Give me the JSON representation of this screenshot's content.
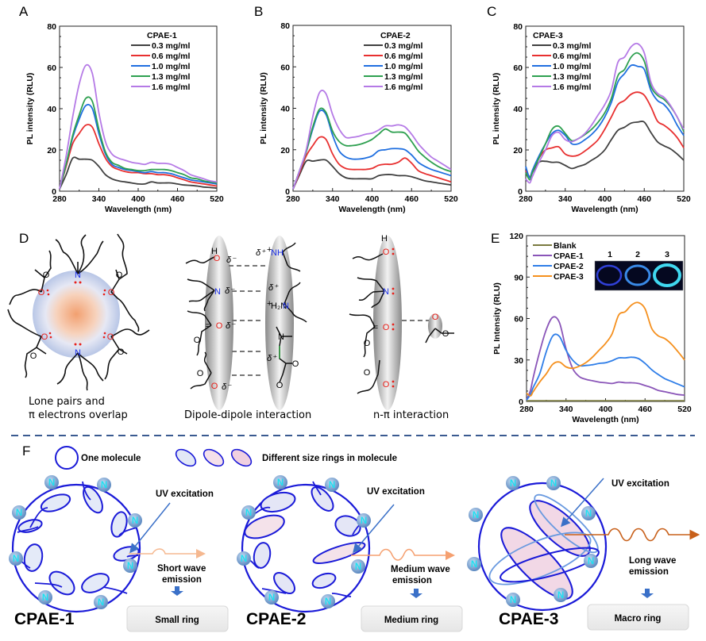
{
  "figure": {
    "panels": {
      "A": "A",
      "B": "B",
      "C": "C",
      "D": "D",
      "E": "E",
      "F": "F"
    }
  },
  "chart_data": [
    {
      "id": "A",
      "type": "line",
      "title": "",
      "xlabel": "Wavelength (nm)",
      "ylabel": "PL intensity (RLU)",
      "xlim": [
        280,
        520
      ],
      "ylim": [
        0,
        80
      ],
      "xticks": [
        280,
        340,
        400,
        460,
        520
      ],
      "yticks": [
        0,
        20,
        40,
        60,
        80
      ],
      "legend_title": "CPAE-1",
      "legend_position": "top-right",
      "grid": false,
      "x": [
        280,
        290,
        300,
        310,
        320,
        330,
        340,
        350,
        360,
        370,
        380,
        390,
        400,
        410,
        420,
        430,
        440,
        450,
        460,
        470,
        480,
        490,
        500,
        510,
        520
      ],
      "series": [
        {
          "name": "0.3 mg/ml",
          "color": "#404040",
          "values": [
            1,
            8,
            16,
            15.5,
            15.5,
            15,
            12,
            8,
            6,
            5,
            4.5,
            4,
            3.5,
            3.5,
            4.5,
            4,
            4,
            4,
            3.5,
            3,
            2.8,
            2.5,
            2,
            1.8,
            1.5
          ]
        },
        {
          "name": "0.6 mg/ml",
          "color": "#e83030",
          "values": [
            1,
            12,
            23,
            28,
            32,
            31,
            23,
            16,
            12,
            10.5,
            9.5,
            9,
            9,
            8.5,
            8.5,
            8,
            8,
            7.5,
            6.5,
            5.5,
            4.5,
            4,
            3.5,
            3,
            2.5
          ]
        },
        {
          "name": "1.0 mg/ml",
          "color": "#1f6fe0",
          "values": [
            1,
            13,
            26,
            35,
            41.5,
            40,
            28,
            18,
            13,
            11.5,
            10.5,
            10,
            9.5,
            9,
            9.5,
            9,
            9,
            8.5,
            7.5,
            6.5,
            5.5,
            5,
            4.5,
            4,
            3.5
          ]
        },
        {
          "name": "1.3 mg/ml",
          "color": "#2ea050",
          "values": [
            1,
            13,
            27,
            37,
            45,
            43.5,
            30,
            19,
            14,
            12.5,
            11,
            10.5,
            10,
            10,
            10.5,
            10.5,
            10.5,
            10,
            9,
            8,
            6.5,
            6,
            5,
            4.5,
            4
          ]
        },
        {
          "name": "1.6 mg/ml",
          "color": "#b57ae6",
          "values": [
            1,
            17,
            36,
            52,
            61,
            57,
            38,
            24,
            18,
            16,
            15,
            14,
            13.5,
            13,
            14,
            13.5,
            13.5,
            13,
            11.5,
            10,
            8,
            7,
            6,
            5,
            4.5
          ]
        }
      ]
    },
    {
      "id": "B",
      "type": "line",
      "title": "",
      "xlabel": "Wavelength (nm)",
      "ylabel": "PL intensity (RLU)",
      "xlim": [
        280,
        520
      ],
      "ylim": [
        0,
        80
      ],
      "xticks": [
        280,
        340,
        400,
        460,
        520
      ],
      "yticks": [
        0,
        20,
        40,
        60,
        80
      ],
      "legend_title": "CPAE-2",
      "legend_position": "top-right",
      "grid": false,
      "x": [
        280,
        290,
        300,
        310,
        320,
        330,
        340,
        350,
        360,
        370,
        380,
        390,
        400,
        410,
        420,
        430,
        440,
        450,
        460,
        470,
        480,
        490,
        500,
        510,
        520
      ],
      "series": [
        {
          "name": "0.3 mg/ml",
          "color": "#404040",
          "values": [
            1,
            8,
            14.5,
            14.5,
            15,
            15,
            12,
            8.5,
            6.5,
            6,
            6,
            6,
            6,
            7.5,
            8,
            8,
            7.5,
            7.5,
            7,
            6,
            5,
            4.5,
            4,
            3.5,
            3
          ]
        },
        {
          "name": "0.6 mg/ml",
          "color": "#e83030",
          "values": [
            1,
            9,
            17,
            22,
            26,
            25,
            18,
            13,
            11,
            10.5,
            10.5,
            10.5,
            11,
            12.5,
            13,
            13,
            14,
            16,
            13.5,
            10,
            8.5,
            7.5,
            6.5,
            5.5,
            4.5
          ]
        },
        {
          "name": "1.0 mg/ml",
          "color": "#1f6fe0",
          "values": [
            1,
            10,
            19,
            30,
            38.5,
            37,
            27,
            19.5,
            16.5,
            15.5,
            15.5,
            16,
            17,
            19.5,
            20,
            20.5,
            20.5,
            20,
            17.5,
            14,
            12,
            10.5,
            9.5,
            8.5,
            7.5
          ]
        },
        {
          "name": "1.3 mg/ml",
          "color": "#2ea050",
          "values": [
            1,
            10,
            19,
            31,
            39.5,
            38,
            29,
            24,
            22,
            22,
            22.5,
            23.5,
            25,
            27.5,
            30,
            28.5,
            28.5,
            28,
            24,
            19.5,
            16.5,
            14,
            12,
            10.5,
            9.5
          ]
        },
        {
          "name": "1.6 mg/ml",
          "color": "#b57ae6",
          "values": [
            1,
            10,
            20,
            36,
            47.5,
            47,
            37,
            30,
            26,
            26,
            26.5,
            27.5,
            28,
            29.5,
            31.5,
            31.5,
            32,
            31,
            27.5,
            23,
            19.5,
            16.5,
            14.5,
            12.5,
            10.5
          ]
        }
      ]
    },
    {
      "id": "C",
      "type": "line",
      "title": "",
      "xlabel": "Wavelength (nm)",
      "ylabel": "PL intensity (RLU)",
      "xlim": [
        280,
        520
      ],
      "ylim": [
        0,
        80
      ],
      "xticks": [
        280,
        340,
        400,
        460,
        520
      ],
      "yticks": [
        0,
        20,
        40,
        60,
        80
      ],
      "legend_title": "CPAE-3",
      "legend_position": "top-left",
      "grid": false,
      "x": [
        280,
        286,
        290,
        300,
        310,
        320,
        330,
        340,
        350,
        360,
        370,
        380,
        390,
        400,
        410,
        420,
        430,
        440,
        450,
        460,
        470,
        480,
        490,
        500,
        510,
        520
      ],
      "series": [
        {
          "name": "0.3 mg/ml",
          "color": "#404040",
          "values": [
            10,
            7,
            9,
            14,
            14.5,
            14,
            14,
            12.5,
            11,
            12,
            13,
            15,
            17,
            20,
            25,
            29.5,
            31,
            33,
            33.5,
            33.5,
            28.5,
            24,
            22,
            20.5,
            18,
            15
          ]
        },
        {
          "name": "0.6 mg/ml",
          "color": "#e83030",
          "values": [
            10,
            7,
            9.5,
            16,
            20,
            21,
            21.5,
            18,
            17,
            17.5,
            19.5,
            22,
            25,
            30,
            36,
            42,
            44,
            47,
            48,
            46.5,
            41,
            34,
            32,
            29.5,
            26,
            21
          ]
        },
        {
          "name": "1.0 mg/ml",
          "color": "#1f6fe0",
          "values": [
            12,
            6.5,
            10,
            17,
            23,
            28,
            29.5,
            27,
            23,
            23,
            25,
            27.5,
            31,
            36,
            43,
            53,
            57,
            61,
            60.5,
            59,
            49,
            44,
            42,
            38,
            32,
            27
          ]
        },
        {
          "name": "1.3 mg/ml",
          "color": "#2ea050",
          "values": [
            9,
            5.5,
            9,
            16,
            23,
            30,
            31.5,
            28,
            24.5,
            25.5,
            27.5,
            30,
            33.5,
            38,
            45,
            56,
            59,
            65,
            67,
            63,
            51,
            46.5,
            44.5,
            41,
            36,
            29
          ]
        },
        {
          "name": "1.6 mg/ml",
          "color": "#b57ae6",
          "values": [
            6,
            4,
            7,
            14,
            20,
            27,
            28.5,
            25,
            24,
            25.5,
            28,
            32,
            37,
            42,
            49,
            62.5,
            65,
            70,
            71.5,
            67,
            53,
            47.5,
            45.5,
            41.5,
            36,
            30
          ]
        }
      ]
    },
    {
      "id": "E",
      "type": "line",
      "title": "",
      "xlabel": "Wavelength (nm)",
      "ylabel": "PL Intensity (RLU)",
      "xlim": [
        280,
        520
      ],
      "ylim": [
        0,
        120
      ],
      "xticks": [
        280,
        340,
        400,
        460,
        520
      ],
      "yticks": [
        0,
        30,
        60,
        90,
        120
      ],
      "legend_position": "top-left",
      "grid": false,
      "inset": {
        "labels": [
          "1",
          "2",
          "3"
        ],
        "description": "UV-lit vials of CPAE-1, CPAE-2, CPAE-3"
      },
      "x": [
        280,
        286,
        290,
        300,
        310,
        320,
        330,
        340,
        350,
        360,
        370,
        380,
        390,
        400,
        410,
        420,
        430,
        440,
        450,
        460,
        470,
        480,
        490,
        500,
        510,
        520
      ],
      "series": [
        {
          "name": "Blank",
          "color": "#7a7a40",
          "values": [
            0.5,
            0.5,
            0.5,
            0.5,
            0.5,
            0.5,
            0.5,
            0.5,
            0.5,
            0.5,
            0.5,
            0.5,
            0.5,
            0.5,
            0.5,
            0.5,
            0.5,
            0.5,
            0.5,
            0.5,
            0.5,
            0.5,
            0.5,
            0.5,
            0.5,
            0.5
          ]
        },
        {
          "name": "CPAE-1",
          "color": "#8a55b8",
          "values": [
            1,
            8,
            17,
            36,
            52,
            61,
            57,
            38,
            24,
            18,
            16,
            15,
            14,
            13.5,
            13,
            14,
            13.5,
            13.5,
            13,
            11.5,
            10,
            8,
            7,
            6,
            5,
            4.5
          ]
        },
        {
          "name": "CPAE-2",
          "color": "#2f7ee8",
          "values": [
            1,
            5,
            10,
            20,
            36,
            47.5,
            47,
            37,
            30,
            26,
            26,
            26.5,
            27.5,
            28,
            29.5,
            31.5,
            31.5,
            32,
            31,
            27.5,
            23,
            19.5,
            16.5,
            14.5,
            12.5,
            10.5
          ]
        },
        {
          "name": "CPAE-3",
          "color": "#f5901e",
          "values": [
            6,
            4,
            7,
            14,
            20,
            27,
            28.5,
            25,
            24,
            25.5,
            28,
            32,
            37,
            42,
            49,
            62.5,
            65,
            70,
            71.5,
            67,
            53,
            47.5,
            45.5,
            41.5,
            36,
            30
          ]
        }
      ]
    }
  ],
  "diagram_D": {
    "captions": {
      "left_line1": "Lone pairs and",
      "left_line2": "π electrons overlap",
      "middle": "Dipole-dipole interaction",
      "right": "n-π interaction"
    },
    "atoms": {
      "N": "N",
      "O": "O",
      "H": "H",
      "NH": "NH",
      "H2N": "H₂N",
      "delta_minus": "δ⁻",
      "delta_plus": "δ⁺",
      "plus": "+",
      "lone_pair": ":"
    },
    "colors": {
      "oxygen": "#e8201a",
      "nitrogen": "#1a2fe8",
      "halo_center": "#f0a070",
      "halo_edge": "#c8d2ec"
    }
  },
  "diagram_F": {
    "legend": {
      "one_molecule": "One molecule",
      "rings": "Different size rings in molecule"
    },
    "atom_label": "N",
    "uv_label": "UV excitation",
    "molecules": [
      {
        "name": "CPAE-1",
        "emission_line1": "Short wave",
        "emission_line2": "emission",
        "ring_box": "Small ring",
        "emission_color": "#f5b890"
      },
      {
        "name": "CPAE-2",
        "emission_line1": "Medium wave",
        "emission_line2": "emission",
        "ring_box": "Medium ring",
        "emission_color": "#f5a070"
      },
      {
        "name": "CPAE-3",
        "emission_line1": "Long wave",
        "emission_line2": "emission",
        "ring_box": "Macro ring",
        "emission_color": "#c8601a"
      }
    ],
    "colors": {
      "ring": "#1a1ad8",
      "atom_text": "#20e0f0",
      "arrow": "#3a70c8",
      "divider": "#3a5a90"
    }
  }
}
